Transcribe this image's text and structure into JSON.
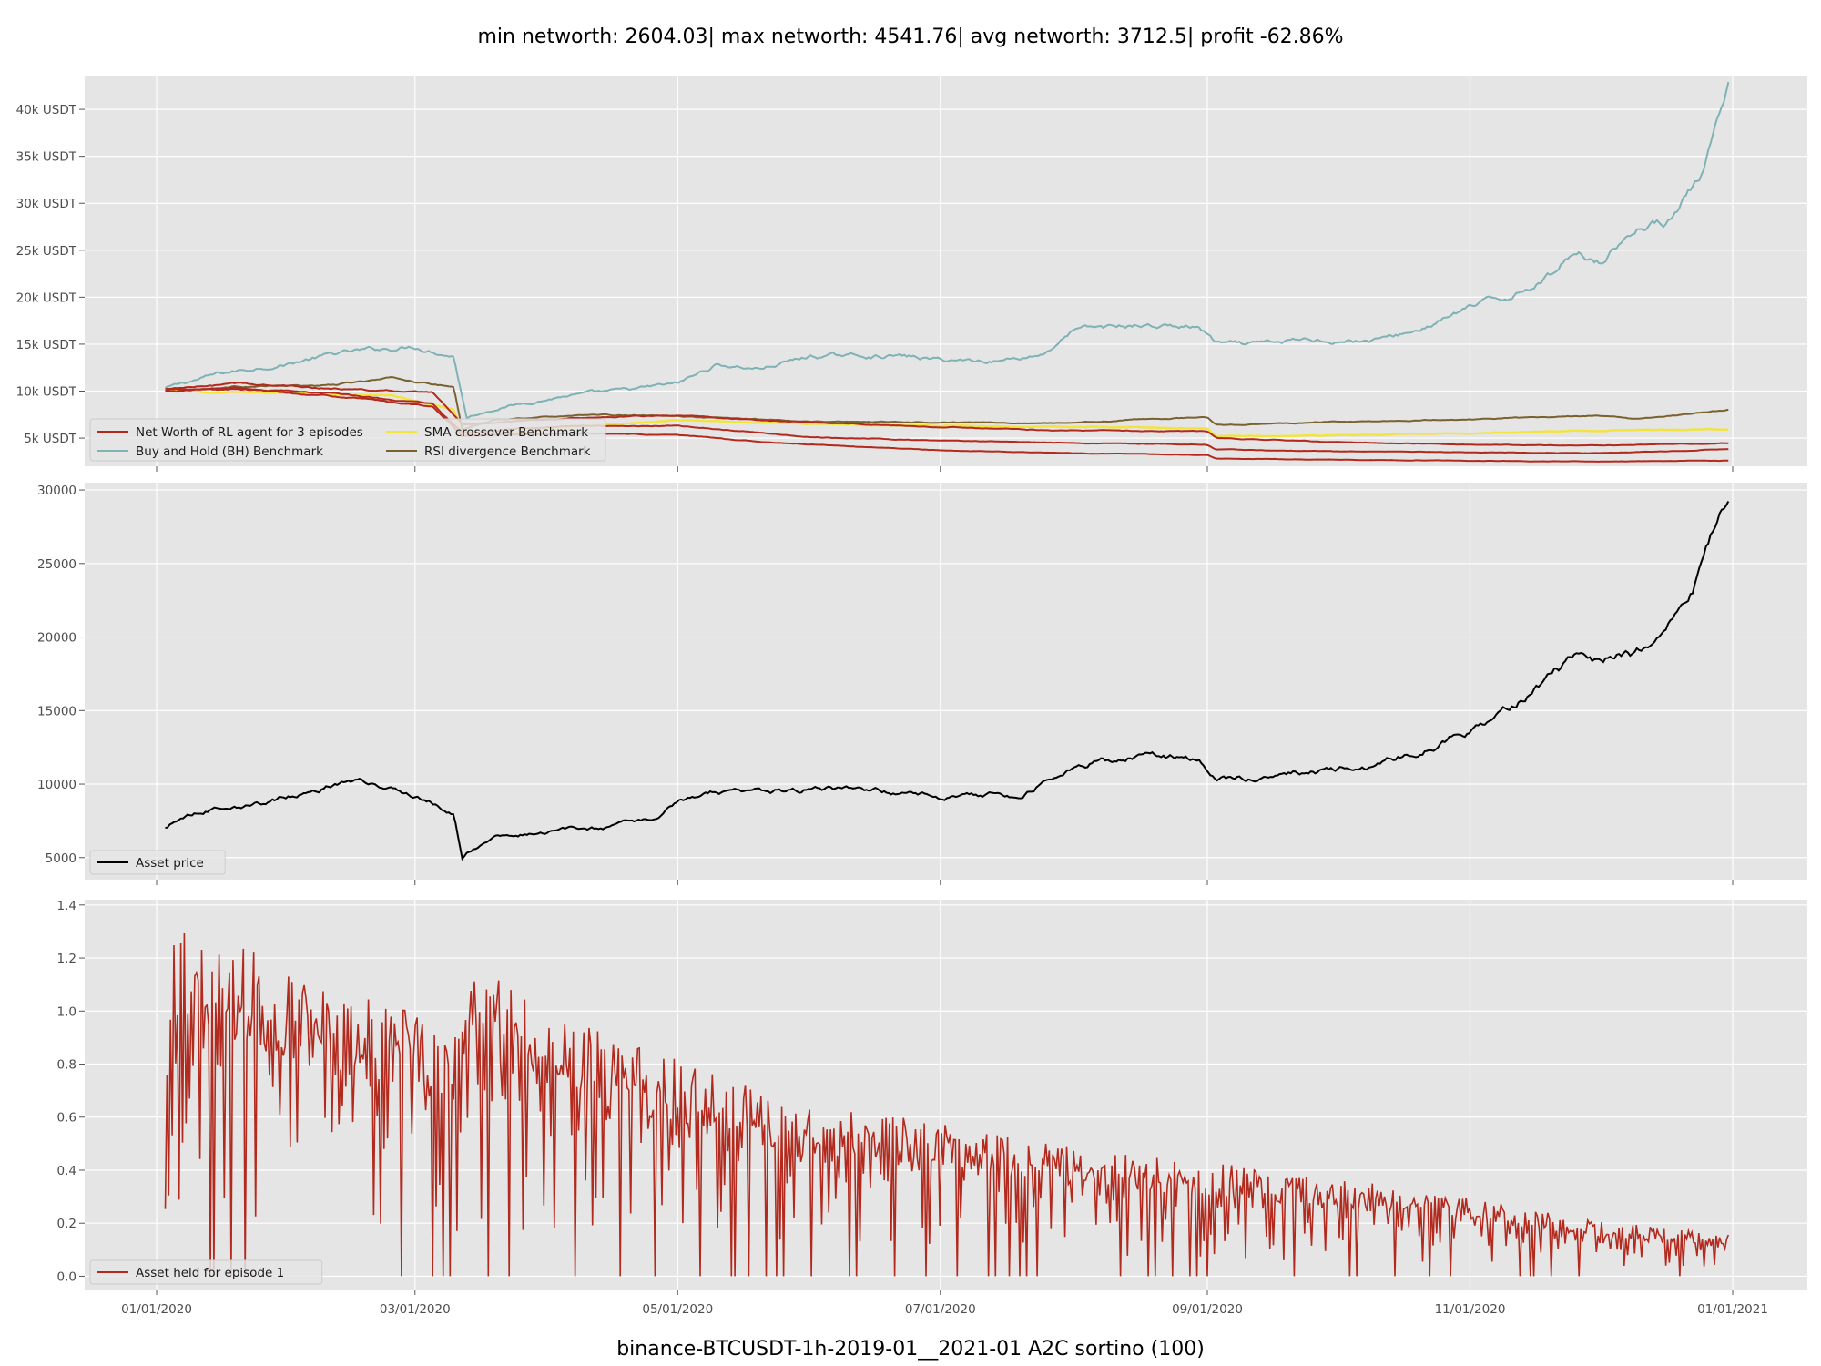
{
  "title": "min networth: 2604.03| max networth: 4541.76| avg networth: 3712.5| profit -62.86%",
  "xlabel": "binance-BTCUSDT-1h-2019-01__2021-01 A2C sortino  (100)",
  "colors": {
    "background": "#e5e5e5",
    "grid": "#ffffff",
    "rl_agent": "#b22a1e",
    "buy_hold": "#7fb2b5",
    "sma": "#f3e43c",
    "rsi": "#7a6230",
    "asset_price": "#000000",
    "asset_held": "#b22a1e"
  },
  "x_ticks": [
    "01/01/2020",
    "03/01/2020",
    "05/01/2020",
    "07/01/2020",
    "09/01/2020",
    "11/01/2020",
    "01/01/2021"
  ],
  "chart_data": [
    {
      "type": "line",
      "panel": "networth",
      "x_range": [
        "2020-01-01",
        "2021-01-01"
      ],
      "ylim": [
        2000,
        43500
      ],
      "y_ticks": [
        "5k USDT",
        "10k USDT",
        "15k USDT",
        "20k USDT",
        "25k USDT",
        "30k USDT",
        "35k USDT",
        "40k USDT"
      ],
      "y_tick_values": [
        5000,
        10000,
        15000,
        20000,
        25000,
        30000,
        35000,
        40000
      ],
      "legend_position": "bottom-left",
      "legend": [
        "Net Worth of RL agent for 3 episodes",
        "Buy and Hold (BH) Benchmark",
        "SMA crossover Benchmark",
        "RSI divergence Benchmark"
      ],
      "series": [
        {
          "name": "Buy and Hold (BH) Benchmark",
          "color_key": "buy_hold",
          "x": [
            "2020-01-03",
            "2020-01-15",
            "2020-02-01",
            "2020-02-12",
            "2020-03-01",
            "2020-03-10",
            "2020-03-13",
            "2020-03-20",
            "2020-04-05",
            "2020-04-20",
            "2020-05-01",
            "2020-05-10",
            "2020-05-20",
            "2020-06-01",
            "2020-06-20",
            "2020-07-01",
            "2020-07-15",
            "2020-07-25",
            "2020-08-01",
            "2020-08-15",
            "2020-08-30",
            "2020-09-03",
            "2020-09-10",
            "2020-09-25",
            "2020-10-10",
            "2020-10-20",
            "2020-11-01",
            "2020-11-10",
            "2020-11-20",
            "2020-11-25",
            "2020-12-01",
            "2020-12-10",
            "2020-12-16",
            "2020-12-25",
            "2020-12-31"
          ],
          "y": [
            10300,
            11800,
            13000,
            14000,
            14800,
            13800,
            7200,
            8200,
            9500,
            10100,
            10800,
            12800,
            12400,
            13700,
            13800,
            13300,
            13300,
            14000,
            16500,
            17000,
            16800,
            15100,
            14800,
            15500,
            15400,
            16500,
            18900,
            20000,
            22500,
            25000,
            24000,
            27500,
            28000,
            33000,
            41800
          ]
        },
        {
          "name": "RSI divergence Benchmark",
          "color_key": "rsi",
          "x": [
            "2020-01-03",
            "2020-01-20",
            "2020-02-10",
            "2020-02-25",
            "2020-03-10",
            "2020-03-12",
            "2020-03-20",
            "2020-04-10",
            "2020-05-01",
            "2020-06-01",
            "2020-07-01",
            "2020-08-01",
            "2020-08-15",
            "2020-09-01",
            "2020-09-03",
            "2020-10-01",
            "2020-11-01",
            "2020-12-01",
            "2020-12-10",
            "2020-12-31"
          ],
          "y": [
            10000,
            10500,
            10600,
            11400,
            10400,
            5900,
            7000,
            7500,
            7300,
            6800,
            6700,
            6600,
            7000,
            7200,
            6400,
            6700,
            7000,
            7400,
            7000,
            8000
          ]
        },
        {
          "name": "SMA crossover Benchmark",
          "color_key": "sma",
          "x": [
            "2020-01-03",
            "2020-02-01",
            "2020-02-25",
            "2020-03-10",
            "2020-03-12",
            "2020-03-25",
            "2020-04-10",
            "2020-05-01",
            "2020-06-01",
            "2020-07-01",
            "2020-08-01",
            "2020-09-01",
            "2020-09-03",
            "2020-10-01",
            "2020-11-01",
            "2020-12-01",
            "2020-12-31"
          ],
          "y": [
            10000,
            9800,
            9500,
            8000,
            5300,
            5600,
            6300,
            6900,
            6500,
            6300,
            6200,
            6000,
            5200,
            5300,
            5500,
            5800,
            6000
          ]
        },
        {
          "name": "Net Worth of RL agent for 3 episodes",
          "color_key": "rl_agent",
          "x": [
            "2020-01-03",
            "2020-01-20",
            "2020-02-10",
            "2020-03-05",
            "2020-03-12",
            "2020-03-25",
            "2020-04-10",
            "2020-05-01",
            "2020-05-15",
            "2020-06-01",
            "2020-07-01",
            "2020-08-01",
            "2020-09-01",
            "2020-09-03",
            "2020-10-01",
            "2020-11-01",
            "2020-12-01",
            "2020-12-31"
          ],
          "y": [
            10200,
            10800,
            10300,
            9800,
            6400,
            6800,
            7200,
            7400,
            7000,
            6700,
            6200,
            5800,
            5700,
            5000,
            4600,
            4300,
            4200,
            4500
          ]
        },
        {
          "name": "",
          "color_key": "rl_agent",
          "x": [
            "2020-01-03",
            "2020-01-20",
            "2020-02-10",
            "2020-03-05",
            "2020-03-12",
            "2020-03-25",
            "2020-04-10",
            "2020-05-01",
            "2020-05-15",
            "2020-06-01",
            "2020-07-01",
            "2020-08-01",
            "2020-09-01",
            "2020-09-03",
            "2020-10-01",
            "2020-11-01",
            "2020-12-01",
            "2020-12-31"
          ],
          "y": [
            10000,
            10400,
            9800,
            8600,
            5500,
            6000,
            6300,
            6300,
            5800,
            5100,
            4700,
            4500,
            4300,
            3800,
            3600,
            3500,
            3400,
            3800
          ]
        },
        {
          "name": "",
          "color_key": "rl_agent",
          "x": [
            "2020-01-03",
            "2020-01-20",
            "2020-02-10",
            "2020-03-05",
            "2020-03-12",
            "2020-03-25",
            "2020-04-10",
            "2020-05-01",
            "2020-05-15",
            "2020-06-01",
            "2020-07-01",
            "2020-08-01",
            "2020-09-01",
            "2020-09-03",
            "2020-10-01",
            "2020-11-01",
            "2020-12-01",
            "2020-12-31"
          ],
          "y": [
            10100,
            10200,
            9500,
            8400,
            5200,
            5400,
            5500,
            5300,
            4800,
            4300,
            3700,
            3400,
            3200,
            2800,
            2700,
            2600,
            2500,
            2600
          ]
        }
      ]
    },
    {
      "type": "line",
      "panel": "price",
      "x_range": [
        "2020-01-01",
        "2021-01-01"
      ],
      "ylim": [
        3500,
        30500
      ],
      "y_ticks": [
        "5000",
        "10000",
        "15000",
        "20000",
        "25000",
        "30000"
      ],
      "y_tick_values": [
        5000,
        10000,
        15000,
        20000,
        25000,
        30000
      ],
      "legend_position": "bottom-left",
      "legend": [
        "Asset price"
      ],
      "series": [
        {
          "name": "Asset price",
          "color_key": "asset_price",
          "x": [
            "2020-01-03",
            "2020-01-07",
            "2020-01-15",
            "2020-01-25",
            "2020-02-05",
            "2020-02-14",
            "2020-02-25",
            "2020-03-05",
            "2020-03-10",
            "2020-03-12",
            "2020-03-13",
            "2020-03-20",
            "2020-04-01",
            "2020-04-15",
            "2020-04-25",
            "2020-05-01",
            "2020-05-10",
            "2020-05-20",
            "2020-06-01",
            "2020-06-20",
            "2020-07-01",
            "2020-07-20",
            "2020-07-27",
            "2020-08-05",
            "2020-08-17",
            "2020-08-30",
            "2020-09-03",
            "2020-09-10",
            "2020-09-25",
            "2020-10-10",
            "2020-10-20",
            "2020-11-01",
            "2020-11-10",
            "2020-11-20",
            "2020-11-25",
            "2020-12-01",
            "2020-12-10",
            "2020-12-16",
            "2020-12-20",
            "2020-12-25",
            "2020-12-31"
          ],
          "y": [
            7000,
            7800,
            8500,
            8700,
            9500,
            10300,
            9700,
            8800,
            7900,
            4900,
            5300,
            6400,
            6800,
            7000,
            7600,
            8800,
            9500,
            9400,
            9700,
            9500,
            9200,
            9300,
            10600,
            11400,
            12000,
            11600,
            10300,
            10400,
            10800,
            11300,
            12200,
            13700,
            15300,
            17500,
            18500,
            18200,
            19000,
            20500,
            23000,
            25000,
            29000
          ]
        }
      ]
    },
    {
      "type": "line",
      "panel": "asset_held",
      "x_range": [
        "2020-01-01",
        "2021-01-01"
      ],
      "ylim": [
        -0.05,
        1.42
      ],
      "y_ticks": [
        "0.0",
        "0.2",
        "0.4",
        "0.6",
        "0.8",
        "1.0",
        "1.2",
        "1.4"
      ],
      "y_tick_values": [
        0,
        0.2,
        0.4,
        0.6,
        0.8,
        1.0,
        1.2,
        1.4
      ],
      "legend_position": "bottom-left",
      "legend": [
        "Asset held for episode 1"
      ],
      "series": [
        {
          "name": "Asset held for episode 1",
          "color_key": "asset_held",
          "envelope_x": [
            "2020-01-03",
            "2020-01-05",
            "2020-01-15",
            "2020-02-01",
            "2020-02-20",
            "2020-03-01",
            "2020-03-12",
            "2020-03-13",
            "2020-03-20",
            "2020-04-01",
            "2020-05-01",
            "2020-06-01",
            "2020-07-01",
            "2020-08-01",
            "2020-09-01",
            "2020-10-01",
            "2020-11-01",
            "2020-12-01",
            "2020-12-31"
          ],
          "envelope_y": [
            0.9,
            1.38,
            1.3,
            1.15,
            1.05,
            1.0,
            0.95,
            1.23,
            1.15,
            1.0,
            0.82,
            0.65,
            0.58,
            0.5,
            0.43,
            0.37,
            0.3,
            0.21,
            0.16
          ]
        }
      ]
    }
  ]
}
